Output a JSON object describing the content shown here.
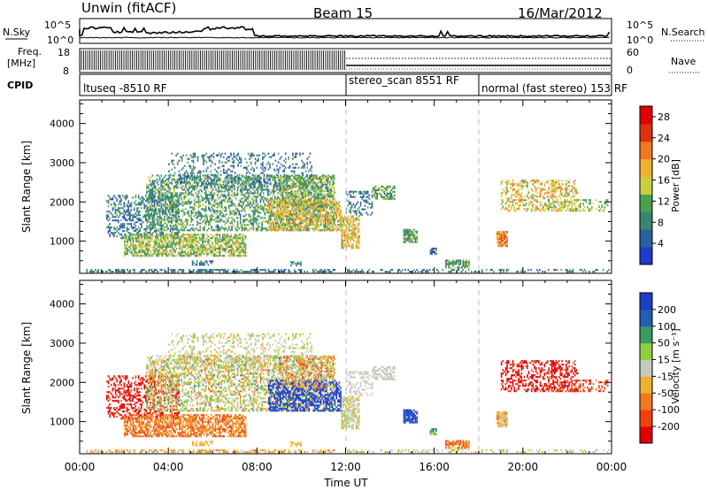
{
  "header": {
    "station": "Unwin (fitACF)",
    "beam": "Beam 15",
    "date": "16/Mar/2012"
  },
  "colors": {
    "power": [
      "#1e3cc8",
      "#2c5fa0",
      "#3a8570",
      "#4aa050",
      "#c8d040",
      "#f0b030",
      "#f07820",
      "#e03010",
      "#e00000"
    ],
    "velocity": [
      "#e00000",
      "#f04010",
      "#f07820",
      "#f0b030",
      "#c8c8c0",
      "#90d040",
      "#3a9a60",
      "#2060b0",
      "#1e3cc8"
    ]
  },
  "strip": {
    "nsky_label": "N.Sky",
    "nsearch_label": "N.Search",
    "left_ticks": [
      "10^5",
      "10^0"
    ],
    "right_ticks": [
      "10^5",
      "10^0"
    ],
    "freq_label_1": "Freq.",
    "freq_label_2": "[MHz]",
    "freq_ticks": [
      "18",
      "8"
    ],
    "nave_label": "Nave",
    "nave_ticks": [
      "60",
      "0"
    ],
    "cpid_label": "CPID",
    "cpid_segments": [
      {
        "label": "ltuseq -8510 RF",
        "start_hour": 0
      },
      {
        "label": "stereo_scan 8551 RF",
        "start_hour": 12
      },
      {
        "label": "normal (fast stereo) 153 RF",
        "start_hour": 18
      }
    ]
  },
  "chart_data": [
    {
      "type": "heatmap",
      "name": "power",
      "xlabel": "",
      "ylabel": "Slant Range [km]",
      "x_ticks": [
        "00:00",
        "04:00",
        "08:00",
        "12:00",
        "16:00",
        "20:00",
        "00:00"
      ],
      "y_ticks": [
        1000,
        2000,
        3000,
        4000
      ],
      "xlim_hours": [
        0,
        24
      ],
      "ylim_km": [
        180,
        4600
      ],
      "colorbar_label": "Power [dB]",
      "colorbar_ticks": [
        "4",
        "8",
        "12",
        "16",
        "20",
        "24",
        "28"
      ],
      "colorbar_range": [
        0,
        30
      ],
      "mode_boundaries_hours": [
        12,
        18
      ]
    },
    {
      "type": "heatmap",
      "name": "velocity",
      "xlabel": "Time UT",
      "ylabel": "Slant Range [km]",
      "x_ticks": [
        "00:00",
        "04:00",
        "08:00",
        "12:00",
        "16:00",
        "20:00",
        "00:00"
      ],
      "y_ticks": [
        1000,
        2000,
        3000,
        4000
      ],
      "xlim_hours": [
        0,
        24
      ],
      "ylim_km": [
        180,
        4600
      ],
      "colorbar_label": "Velocity [m s⁻¹]",
      "colorbar_ticks": [
        "200",
        "100",
        "50",
        "15",
        "-15",
        "-50",
        "-100",
        "-200"
      ],
      "mode_boundaries_hours": [
        12,
        18
      ]
    }
  ]
}
